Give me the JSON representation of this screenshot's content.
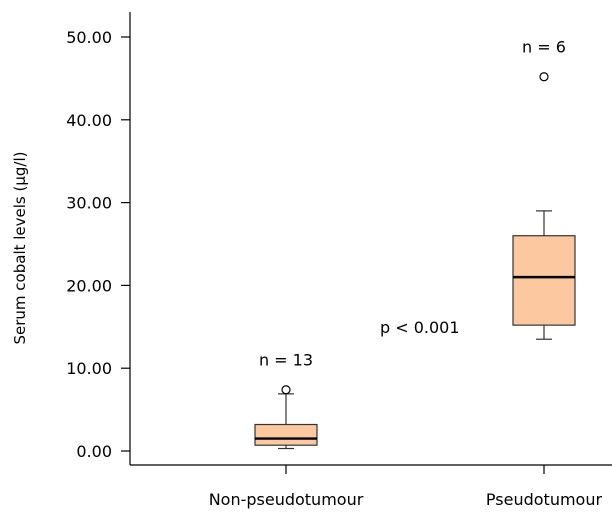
{
  "chart_data": {
    "type": "box",
    "ylabel": "Serum cobalt levels (μg/l)",
    "ylim": [
      -2,
      54
    ],
    "yticks": [
      0,
      10,
      20,
      30,
      40,
      50
    ],
    "ytick_labels": [
      "0.00",
      "10.00",
      "20.00",
      "30.00",
      "40.00",
      "50.00"
    ],
    "categories": [
      "Non-pseudotumour",
      "Pseudotumour"
    ],
    "boxes": [
      {
        "category": "Non-pseudotumour",
        "n_label": "n = 13",
        "whisker_low": 0.3,
        "q1": 0.7,
        "median": 1.5,
        "q3": 3.2,
        "whisker_high": 6.9,
        "outliers": [
          7.4
        ]
      },
      {
        "category": "Pseudotumour",
        "n_label": "n = 6",
        "whisker_low": 13.5,
        "q1": 15.2,
        "median": 21.0,
        "q3": 26.0,
        "whisker_high": 29.0,
        "outliers": [
          45.2
        ]
      }
    ],
    "annotations": [
      {
        "text": "p < 0.001"
      }
    ],
    "colors": {
      "box_fill": "#fbc8a0",
      "box_stroke": "#333333",
      "median": "#000000",
      "axis": "#000000"
    }
  }
}
